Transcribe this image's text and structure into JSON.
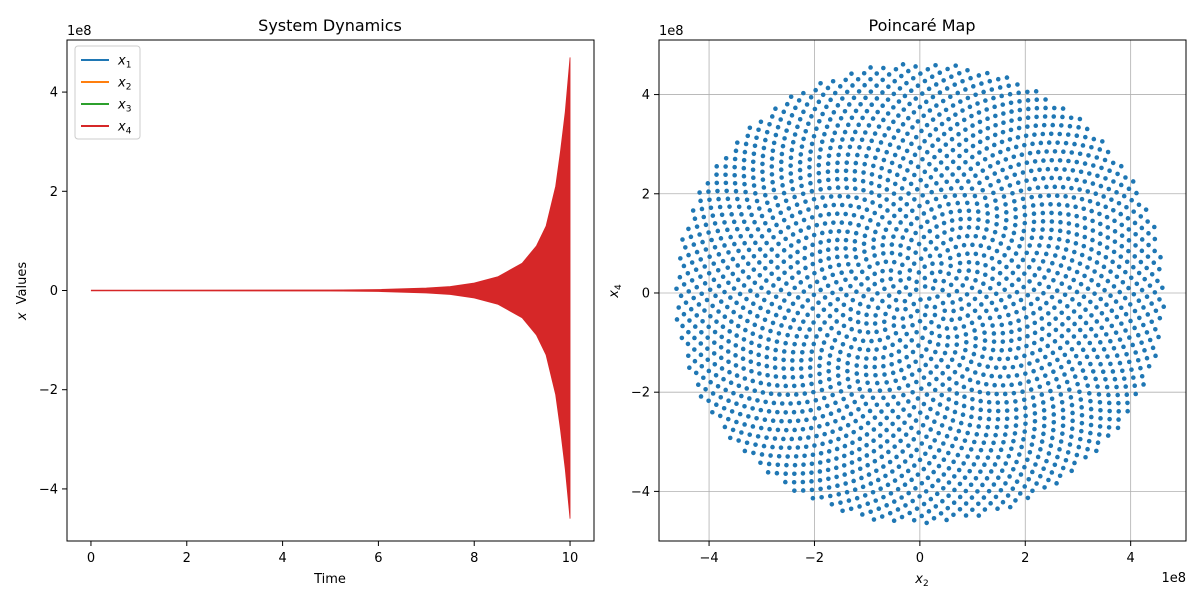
{
  "chart_data": [
    {
      "type": "line",
      "title": "System Dynamics",
      "xlabel": "Time",
      "ylabel": "x Values",
      "ylabel_math": "x",
      "ylabel_suffix": "Values",
      "y_offset_label": "1e8",
      "xlim": [
        -0.5,
        10.5
      ],
      "ylim": [
        -5.05,
        5.05
      ],
      "xticks": [
        0,
        2,
        4,
        6,
        8,
        10
      ],
      "xtick_labels": [
        "0",
        "2",
        "4",
        "6",
        "8",
        "10"
      ],
      "yticks": [
        -4,
        -2,
        0,
        2,
        4
      ],
      "ytick_labels": [
        "−4",
        "−2",
        "0",
        "2",
        "4"
      ],
      "grid": false,
      "legend_position": "top-left",
      "envelope": {
        "x": [
          0,
          5,
          6,
          7,
          7.5,
          8,
          8.5,
          9,
          9.3,
          9.5,
          9.7,
          9.8,
          9.9,
          10
        ],
        "upper": [
          0,
          0.01,
          0.02,
          0.05,
          0.08,
          0.15,
          0.28,
          0.55,
          0.9,
          1.3,
          2.1,
          2.8,
          3.6,
          4.7
        ],
        "lower": [
          0,
          -0.01,
          -0.02,
          -0.05,
          -0.08,
          -0.15,
          -0.28,
          -0.55,
          -0.9,
          -1.3,
          -2.1,
          -2.8,
          -3.6,
          -4.6
        ]
      },
      "series": [
        {
          "name": "x1",
          "color": "#1f77b4"
        },
        {
          "name": "x2",
          "color": "#ff7f0e"
        },
        {
          "name": "x3",
          "color": "#2ca02c"
        },
        {
          "name": "x4",
          "color": "#d62728"
        }
      ],
      "end_tail": {
        "x": 10,
        "y_low": -4.6,
        "color": "#2ca02c"
      }
    },
    {
      "type": "scatter",
      "title": "Poincaré Map",
      "xlabel": "x2",
      "ylabel": "x4",
      "x_offset_label": "1e8",
      "y_offset_label": "1e8",
      "xlim": [
        -4.95,
        5.05
      ],
      "ylim": [
        -5.0,
        5.1
      ],
      "xticks": [
        -4,
        -2,
        0,
        2,
        4
      ],
      "xtick_labels": [
        "−4",
        "−2",
        "0",
        "2",
        "4"
      ],
      "yticks": [
        -4,
        -2,
        0,
        2,
        4
      ],
      "ytick_labels": [
        "−4",
        "−2",
        "0",
        "2",
        "4"
      ],
      "grid": true,
      "point_color": "#1f77b4",
      "spiral": {
        "points": 2400,
        "max_radius": 4.65,
        "radius_exponent": 2.0,
        "angle_step_degrees": 137.508
      }
    }
  ]
}
